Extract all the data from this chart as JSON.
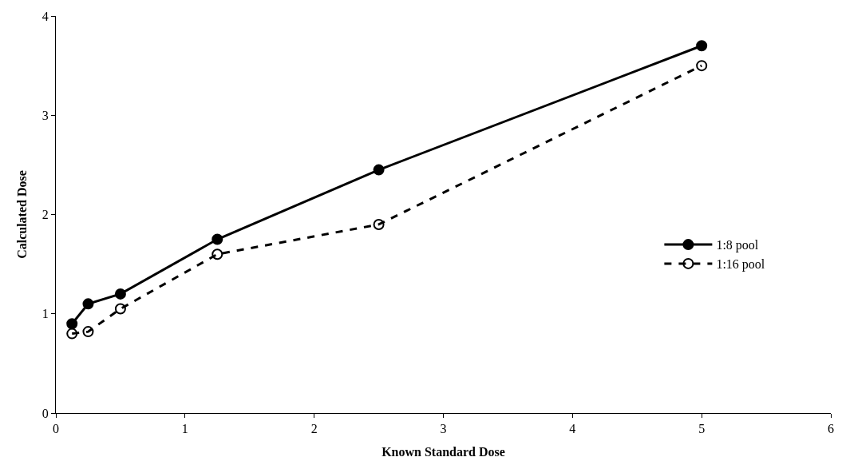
{
  "chart_data": {
    "type": "line",
    "xlabel": "Known Standard Dose",
    "ylabel": "Calculated Dose",
    "x": [
      0.125,
      0.25,
      0.5,
      1.25,
      2.5,
      5
    ],
    "series": [
      {
        "name": "1:8 pool",
        "color": "#000000",
        "values": [
          0.9,
          1.1,
          1.2,
          1.75,
          2.45,
          3.7
        ],
        "line_style": "solid"
      },
      {
        "name": "1:16 pool",
        "color": "#000000",
        "values": [
          0.8,
          0.82,
          1.05,
          1.6,
          1.9,
          3.5
        ],
        "line_style": "dashed"
      }
    ],
    "xlim": [
      0,
      6
    ],
    "xticks": [
      0,
      1,
      2,
      3,
      4,
      5,
      6
    ],
    "ylim": [
      0,
      4
    ],
    "yticks": [
      0,
      1,
      2,
      3,
      4
    ],
    "legend": "right",
    "marker": "circle"
  }
}
